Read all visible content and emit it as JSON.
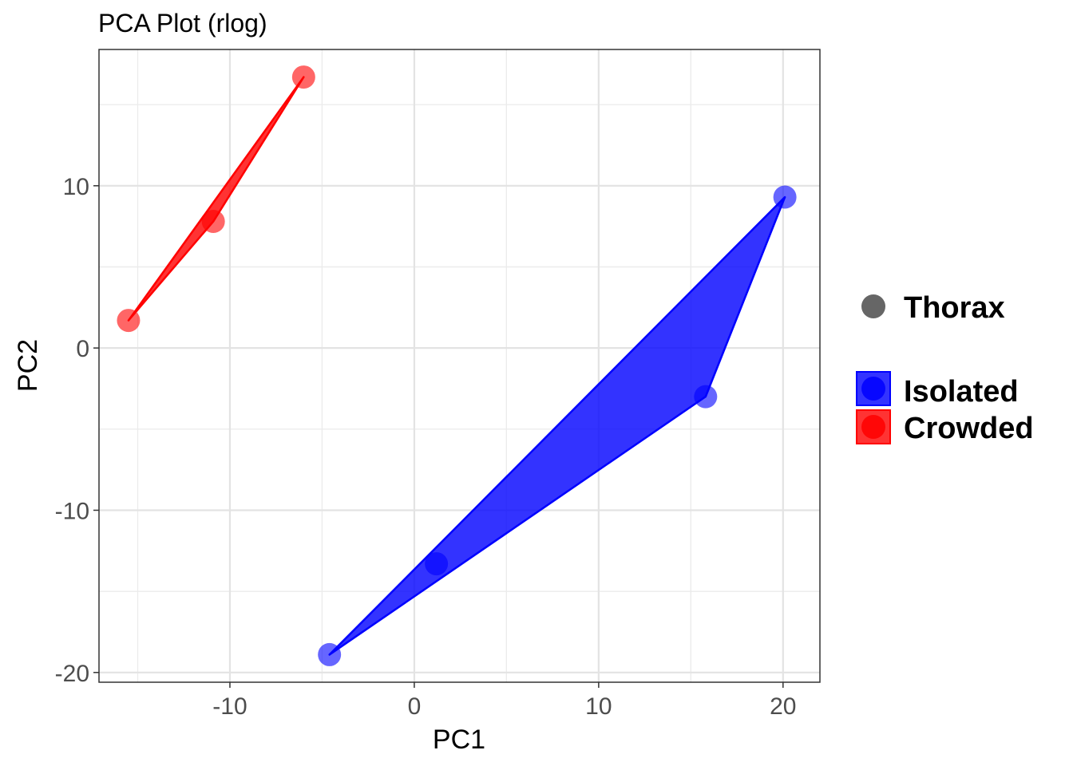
{
  "chart_data": {
    "type": "scatter",
    "title": "PCA Plot (rlog)",
    "xlabel": "PC1",
    "ylabel": "PC2",
    "xlim": [
      -17.1,
      22.0
    ],
    "ylim": [
      -20.6,
      18.4
    ],
    "x_ticks": [
      -10,
      0,
      10,
      20
    ],
    "y_ticks": [
      10,
      0,
      -10,
      -20
    ],
    "x_tick_labels": [
      "-10",
      "0",
      "10",
      "20"
    ],
    "y_tick_labels": [
      "10",
      "0",
      "-10",
      "-20"
    ],
    "grid": true,
    "legend_position": "right",
    "shape_legend": {
      "label": "Thorax",
      "color": "#666666"
    },
    "series": [
      {
        "name": "Isolated",
        "color": "#0000ff",
        "hull": true,
        "points": [
          {
            "x": -4.6,
            "y": -18.9
          },
          {
            "x": 1.2,
            "y": -13.3
          },
          {
            "x": 15.8,
            "y": -3.0
          },
          {
            "x": 20.1,
            "y": 9.3
          }
        ]
      },
      {
        "name": "Crowded",
        "color": "#ff0000",
        "hull": true,
        "points": [
          {
            "x": -15.5,
            "y": 1.7
          },
          {
            "x": -10.9,
            "y": 7.8
          },
          {
            "x": -6.0,
            "y": 16.7
          }
        ]
      }
    ]
  }
}
